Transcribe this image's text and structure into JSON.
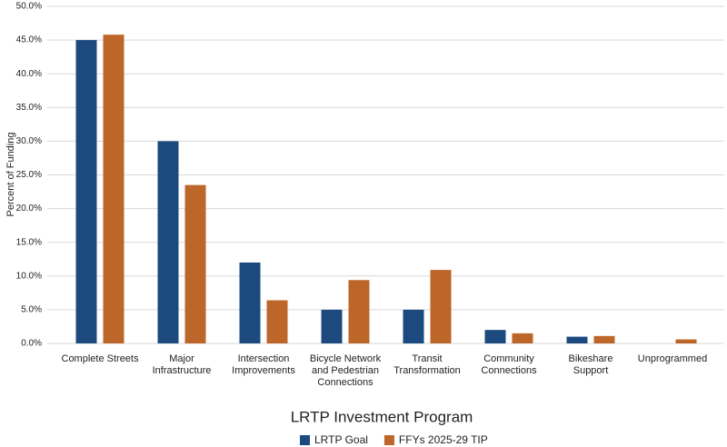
{
  "chart_data": {
    "type": "bar",
    "categories": [
      [
        "Complete Streets"
      ],
      [
        "Major",
        "Infrastructure"
      ],
      [
        "Intersection",
        "Improvements"
      ],
      [
        "Bicycle Network",
        "and Pedestrian",
        "Connections"
      ],
      [
        "Transit",
        "Transformation"
      ],
      [
        "Community",
        "Connections"
      ],
      [
        "Bikeshare",
        "Support"
      ],
      [
        "Unprogrammed"
      ]
    ],
    "series": [
      {
        "name": "LRTP Goal",
        "color": "#1c4a7e",
        "values": [
          45,
          30,
          12,
          5,
          5,
          2,
          1,
          0
        ]
      },
      {
        "name": "FFYs 2025-29 TIP",
        "color": "#bd6629",
        "values": [
          45.8,
          23.5,
          6.4,
          9.4,
          10.9,
          1.5,
          1.1,
          0.6
        ]
      }
    ],
    "xlabel": "LRTP Investment Program",
    "ylabel": "Percent of Funding",
    "ylim": [
      0,
      50
    ],
    "yticks": [
      {
        "value": 0,
        "label": "0.0%"
      },
      {
        "value": 5,
        "label": "5.0%"
      },
      {
        "value": 10,
        "label": "10.0%"
      },
      {
        "value": 15,
        "label": "15.0%"
      },
      {
        "value": 20,
        "label": "20.0%"
      },
      {
        "value": 25,
        "label": "25.0%"
      },
      {
        "value": 30,
        "label": "30.0%"
      },
      {
        "value": 35,
        "label": "35.0%"
      },
      {
        "value": 40,
        "label": "40.0%"
      },
      {
        "value": 45,
        "label": "45.0%"
      },
      {
        "value": 50,
        "label": "50.0%"
      }
    ],
    "grid": true,
    "legend": "bottom"
  }
}
